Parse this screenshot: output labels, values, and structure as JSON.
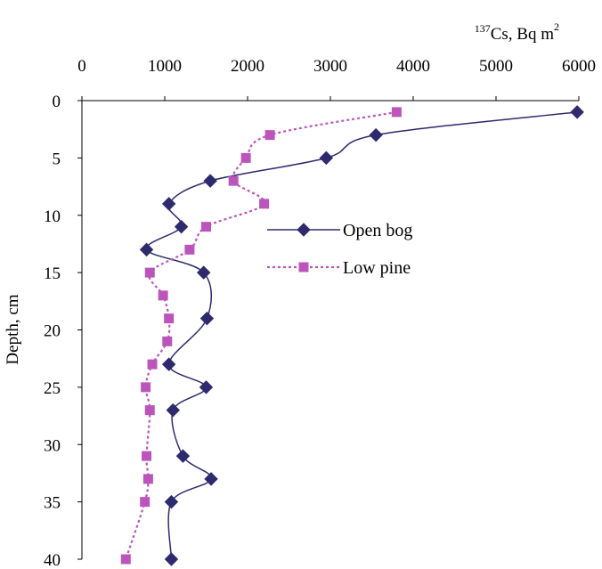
{
  "chart_data": {
    "type": "line",
    "xlabel_prefix": "137",
    "xlabel_main": "Cs, Bq m",
    "xlabel_sup": "2",
    "ylabel": "Depth, cm",
    "xlim": [
      0,
      6000
    ],
    "ylim": [
      0,
      40
    ],
    "x_ticks": [
      "0",
      "1000",
      "2000",
      "3000",
      "4000",
      "5000",
      "6000"
    ],
    "y_ticks": [
      "0",
      "5",
      "10",
      "15",
      "20",
      "25",
      "30",
      "35",
      "40"
    ],
    "x_axis_position": "top",
    "y_inverted": true,
    "grid": false,
    "legend_position": "center-right",
    "series": [
      {
        "name": "Open bog",
        "color": "#2e2a6e",
        "marker": "diamond",
        "line_style": "solid",
        "points": [
          {
            "x": 5980,
            "y": 1
          },
          {
            "x": 3550,
            "y": 3
          },
          {
            "x": 2950,
            "y": 5
          },
          {
            "x": 1550,
            "y": 7
          },
          {
            "x": 1050,
            "y": 9
          },
          {
            "x": 1200,
            "y": 11
          },
          {
            "x": 780,
            "y": 13
          },
          {
            "x": 1470,
            "y": 15
          },
          {
            "x": 1510,
            "y": 19
          },
          {
            "x": 1050,
            "y": 23
          },
          {
            "x": 1500,
            "y": 25
          },
          {
            "x": 1100,
            "y": 27
          },
          {
            "x": 1220,
            "y": 31
          },
          {
            "x": 1560,
            "y": 33
          },
          {
            "x": 1080,
            "y": 35
          },
          {
            "x": 1080,
            "y": 40
          }
        ]
      },
      {
        "name": "Low pine",
        "color": "#bb55bb",
        "marker": "square",
        "line_style": "dotted",
        "points": [
          {
            "x": 3800,
            "y": 1
          },
          {
            "x": 2270,
            "y": 3
          },
          {
            "x": 1980,
            "y": 5
          },
          {
            "x": 1830,
            "y": 7
          },
          {
            "x": 2200,
            "y": 9
          },
          {
            "x": 1500,
            "y": 11
          },
          {
            "x": 1300,
            "y": 13
          },
          {
            "x": 820,
            "y": 15
          },
          {
            "x": 980,
            "y": 17
          },
          {
            "x": 1050,
            "y": 19
          },
          {
            "x": 1030,
            "y": 21
          },
          {
            "x": 850,
            "y": 23
          },
          {
            "x": 770,
            "y": 25
          },
          {
            "x": 820,
            "y": 27
          },
          {
            "x": 780,
            "y": 31
          },
          {
            "x": 800,
            "y": 33
          },
          {
            "x": 760,
            "y": 35
          },
          {
            "x": 530,
            "y": 40
          }
        ]
      }
    ]
  }
}
